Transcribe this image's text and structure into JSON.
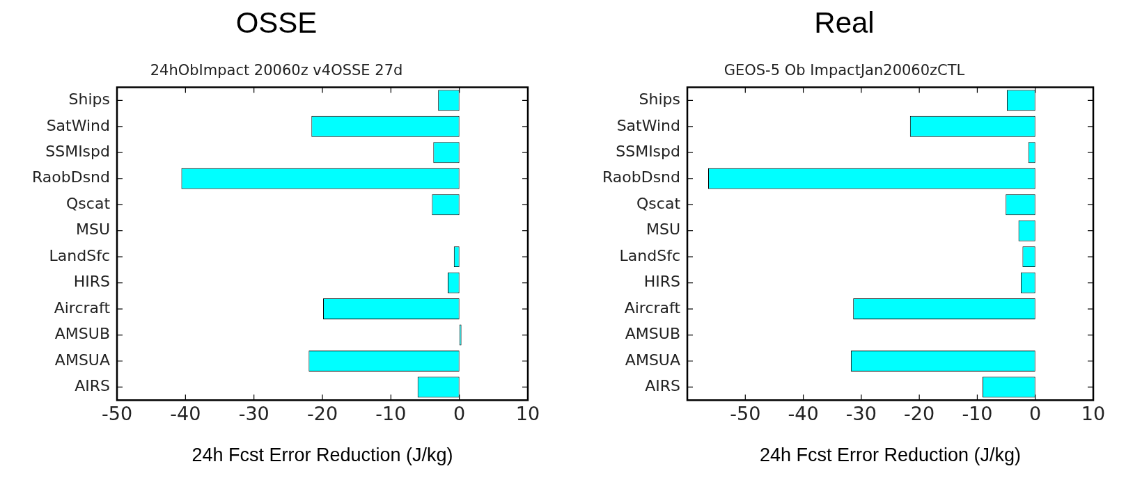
{
  "chart_data": [
    {
      "type": "bar",
      "orientation": "horizontal",
      "title": "OSSE",
      "subtitle": "24hObImpact 20060z v4OSSE 27d",
      "xlabel": "24h Fcst Error Reduction (J/kg)",
      "categories": [
        "Ships",
        "SatWind",
        "SSMIspd",
        "RaobDsnd",
        "Qscat",
        "MSU",
        "LandSfc",
        "HIRS",
        "Aircraft",
        "AMSUB",
        "AMSUA",
        "AIRS"
      ],
      "values": [
        -3.1,
        -21.6,
        -3.8,
        -40.6,
        -4.0,
        0,
        -0.8,
        -1.7,
        -19.9,
        0.3,
        -22.0,
        -6.1
      ],
      "color": "#00ffff",
      "xlim": [
        -50,
        10
      ],
      "xticks": [
        -50,
        -40,
        -30,
        -20,
        -10,
        0,
        10
      ],
      "grid": false,
      "legend": false
    },
    {
      "type": "bar",
      "orientation": "horizontal",
      "title": "Real",
      "subtitle": "GEOS-5 Ob ImpactJan20060zCTL",
      "xlabel": "24h Fcst Error Reduction (J/kg)",
      "categories": [
        "Ships",
        "SatWind",
        "SSMIspd",
        "RaobDsnd",
        "Qscat",
        "MSU",
        "LandSfc",
        "HIRS",
        "Aircraft",
        "AMSUB",
        "AMSUA",
        "AIRS"
      ],
      "values": [
        -4.9,
        -21.6,
        -1.2,
        -56.4,
        -5.1,
        -2.9,
        -2.2,
        -2.5,
        -31.4,
        0,
        -31.8,
        -9.1
      ],
      "color": "#00ffff",
      "xlim": [
        -60,
        10
      ],
      "xticks": [
        -50,
        -40,
        -30,
        -20,
        -10,
        0,
        10
      ],
      "grid": false,
      "legend": false
    }
  ]
}
